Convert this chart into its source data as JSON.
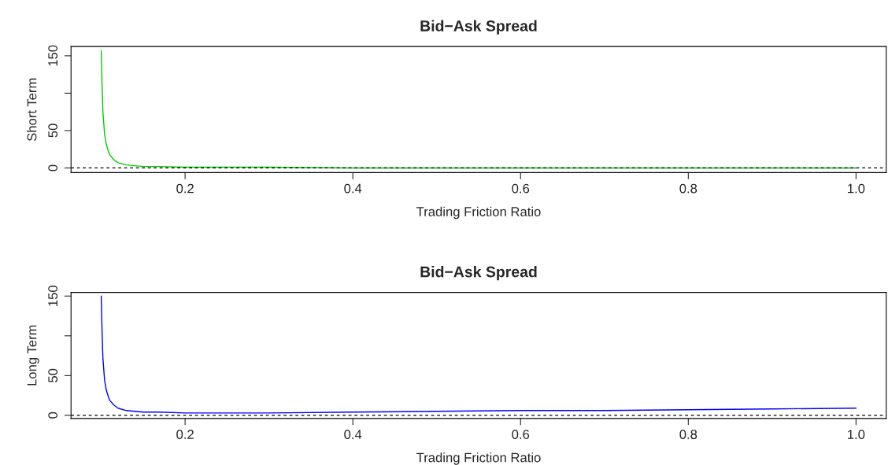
{
  "chart_data": [
    {
      "type": "line",
      "title": "Bid−Ask Spread",
      "xlabel": "Trading Friction Ratio",
      "ylabel": "Short Term",
      "xlim": [
        0.064,
        1.036
      ],
      "xticks": [
        0.2,
        0.4,
        0.6,
        0.8,
        {
          "value": 1,
          "label": "1.0"
        }
      ],
      "ylim": [
        -6.2,
        162.4
      ],
      "yticks": [
        0,
        50,
        {
          "value": 100,
          "label": null
        },
        150
      ],
      "grid": false,
      "ref_lines": [
        {
          "axis": "y",
          "value": 0,
          "color": "#000000",
          "line_style": "dashed"
        }
      ],
      "series": [
        {
          "color": "#00cc00",
          "x": [
            0.1,
            0.101,
            0.102,
            0.104,
            0.106,
            0.108,
            0.11,
            0.115,
            0.12,
            0.13,
            0.14,
            0.15,
            0.17,
            0.2,
            0.25,
            0.3,
            0.4,
            0.5,
            0.6,
            0.7,
            0.8,
            0.9,
            1.0
          ],
          "values": [
            157,
            110,
            75,
            45,
            32,
            24,
            18,
            11,
            7,
            4,
            3,
            2,
            2,
            1,
            1,
            1,
            0,
            0,
            0,
            0,
            0,
            0,
            0
          ]
        }
      ]
    },
    {
      "type": "line",
      "title": "Bid−Ask Spread",
      "xlabel": "Trading Friction Ratio",
      "ylabel": "Long Term",
      "xlim": [
        0.064,
        1.036
      ],
      "xticks": [
        0.2,
        0.4,
        0.6,
        0.8,
        {
          "value": 1,
          "label": "1.0"
        }
      ],
      "ylim": [
        -4,
        154.6
      ],
      "yticks": [
        0,
        50,
        {
          "value": 100,
          "label": null
        },
        150
      ],
      "grid": false,
      "ref_lines": [
        {
          "axis": "y",
          "value": 0,
          "color": "#000000",
          "line_style": "dashed"
        }
      ],
      "series": [
        {
          "color": "#0000ff",
          "x": [
            0.1,
            0.101,
            0.102,
            0.104,
            0.106,
            0.108,
            0.11,
            0.115,
            0.12,
            0.13,
            0.14,
            0.15,
            0.17,
            0.2,
            0.25,
            0.3,
            0.4,
            0.5,
            0.6,
            0.7,
            0.8,
            0.9,
            1.0
          ],
          "values": [
            150,
            105,
            72,
            44,
            32,
            25,
            19,
            13,
            9,
            6,
            5,
            4,
            4,
            3,
            3,
            3,
            4,
            5,
            6,
            6,
            7,
            8,
            9
          ]
        }
      ]
    }
  ]
}
